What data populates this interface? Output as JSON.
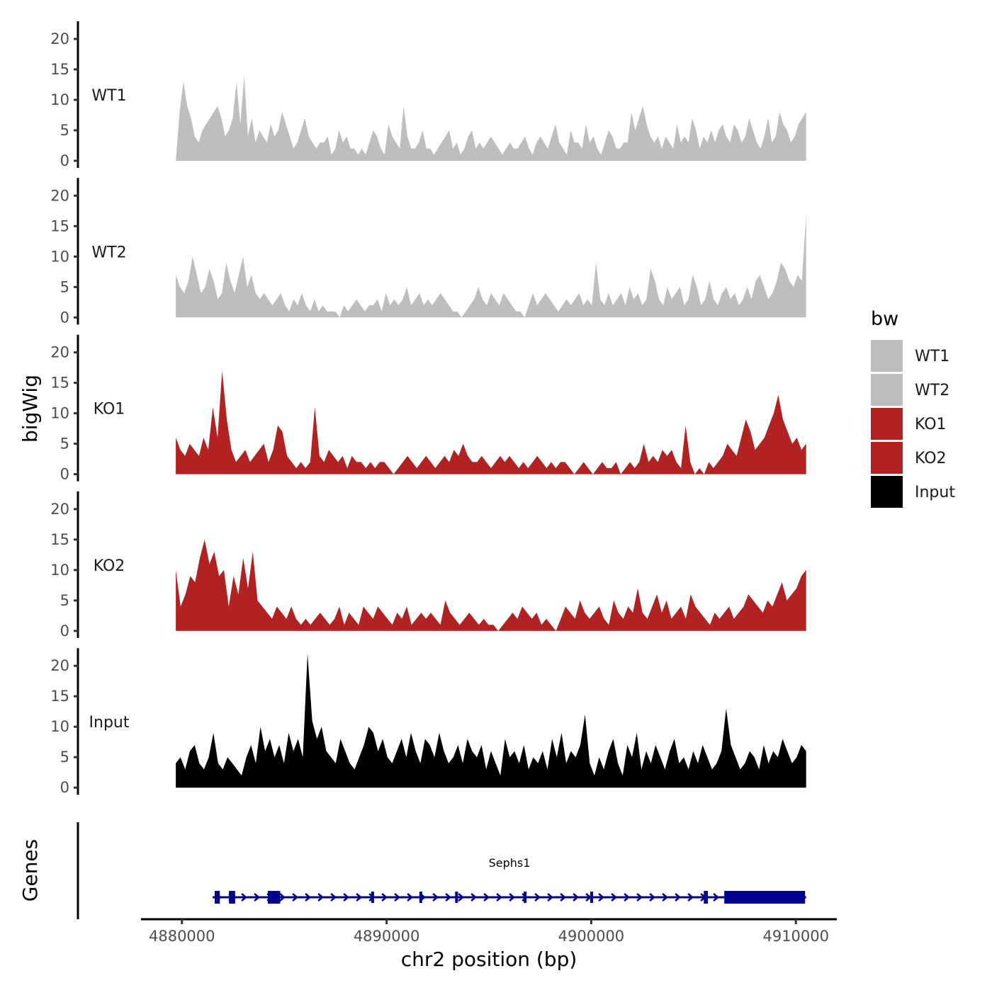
{
  "chart_data": {
    "type": "area",
    "ylabel": "bigWig",
    "xlabel": "chr2 position (bp)",
    "xlim": [
      4878000,
      4912000
    ],
    "data_range": [
      4879700,
      4910500
    ],
    "x_ticks": [
      "4880000",
      "4890000",
      "4900000",
      "4910000"
    ],
    "x_tick_values": [
      4880000,
      4890000,
      4900000,
      4910000
    ],
    "ylim": [
      0,
      23
    ],
    "y_ticks": [
      "0",
      "5",
      "10",
      "15",
      "20"
    ],
    "y_tick_values": [
      0,
      5,
      10,
      15,
      20
    ],
    "legend": {
      "title": "bw",
      "position": "right",
      "entries": [
        {
          "name": "WT1",
          "color": "#BEBEBE"
        },
        {
          "name": "WT2",
          "color": "#BEBEBE"
        },
        {
          "name": "KO1",
          "color": "#B22222"
        },
        {
          "name": "KO2",
          "color": "#B22222"
        },
        {
          "name": "Input",
          "color": "#000000"
        }
      ]
    },
    "tracks": [
      {
        "name": "WT1",
        "color": "#BEBEBE",
        "values": [
          0,
          8,
          13,
          9,
          7,
          4,
          3,
          5,
          6,
          7,
          8,
          9,
          7,
          4,
          5,
          7,
          13,
          6,
          14,
          4,
          7,
          3,
          5,
          4,
          3,
          6,
          4,
          5,
          8,
          6,
          4,
          2,
          3,
          5,
          7,
          4,
          3,
          2,
          3,
          3,
          4,
          1,
          2,
          5,
          3,
          4,
          2,
          2,
          1,
          2,
          1,
          3,
          5,
          4,
          2,
          1,
          6,
          4,
          3,
          2,
          9,
          4,
          2,
          2,
          3,
          5,
          2,
          2,
          1,
          2,
          3,
          4,
          5,
          2,
          3,
          1,
          2,
          4,
          5,
          2,
          3,
          2,
          3,
          4,
          3,
          2,
          1,
          2,
          3,
          2,
          2,
          3,
          4,
          2,
          1,
          3,
          4,
          3,
          2,
          4,
          6,
          3,
          2,
          1,
          5,
          3,
          3,
          2,
          6,
          3,
          4,
          2,
          1,
          3,
          5,
          4,
          2,
          2,
          3,
          3,
          8,
          5,
          7,
          9,
          6,
          4,
          3,
          4,
          2,
          4,
          3,
          2,
          6,
          3,
          4,
          3,
          7,
          5,
          2,
          4,
          3,
          5,
          3,
          5,
          6,
          4,
          3,
          6,
          5,
          3,
          4,
          7,
          5,
          3,
          2,
          4,
          7,
          3,
          4,
          8,
          6,
          5,
          3,
          4,
          6,
          7,
          8
        ]
      },
      {
        "name": "WT2",
        "color": "#BEBEBE",
        "values": [
          7,
          5,
          4,
          6,
          10,
          7,
          4,
          5,
          8,
          6,
          3,
          4,
          9,
          6,
          4,
          7,
          10,
          5,
          7,
          4,
          3,
          4,
          3,
          2,
          3,
          4,
          2,
          1,
          3,
          2,
          4,
          2,
          1,
          3,
          1,
          2,
          1,
          1,
          1,
          0,
          2,
          1,
          2,
          3,
          2,
          1,
          2,
          2,
          3,
          1,
          4,
          2,
          3,
          2,
          3,
          5,
          2,
          3,
          4,
          2,
          3,
          2,
          3,
          4,
          3,
          2,
          1,
          1,
          0,
          1,
          2,
          3,
          5,
          3,
          2,
          4,
          3,
          2,
          4,
          3,
          2,
          1,
          1,
          0,
          2,
          4,
          2,
          3,
          4,
          3,
          2,
          1,
          2,
          3,
          2,
          3,
          4,
          2,
          3,
          2,
          9,
          3,
          2,
          4,
          2,
          3,
          4,
          2,
          5,
          3,
          4,
          2,
          3,
          8,
          6,
          3,
          2,
          5,
          3,
          4,
          5,
          2,
          3,
          7,
          5,
          2,
          3,
          6,
          3,
          2,
          4,
          5,
          3,
          4,
          2,
          3,
          5,
          3,
          6,
          7,
          5,
          3,
          4,
          6,
          9,
          8,
          6,
          5,
          7,
          6,
          17
        ]
      },
      {
        "name": "KO1",
        "color": "#B22222",
        "values": [
          6,
          4,
          3,
          5,
          4,
          3,
          6,
          4,
          11,
          6,
          17,
          9,
          4,
          2,
          3,
          4,
          2,
          3,
          4,
          5,
          2,
          4,
          8,
          7,
          3,
          2,
          1,
          2,
          1,
          2,
          11,
          3,
          2,
          4,
          3,
          2,
          3,
          1,
          3,
          2,
          2,
          1,
          2,
          1,
          2,
          2,
          1,
          0,
          1,
          2,
          3,
          2,
          1,
          2,
          3,
          2,
          1,
          2,
          3,
          2,
          4,
          3,
          5,
          3,
          2,
          2,
          3,
          2,
          1,
          2,
          3,
          2,
          3,
          2,
          1,
          2,
          1,
          2,
          3,
          2,
          1,
          2,
          1,
          2,
          2,
          1,
          0,
          1,
          2,
          1,
          0,
          1,
          2,
          1,
          1,
          2,
          0,
          1,
          2,
          1,
          2,
          5,
          2,
          3,
          2,
          4,
          3,
          4,
          2,
          1,
          8,
          2,
          0,
          1,
          0,
          2,
          1,
          2,
          3,
          5,
          4,
          3,
          6,
          9,
          7,
          4,
          5,
          6,
          8,
          10,
          13,
          9,
          7,
          5,
          6,
          4,
          5
        ]
      },
      {
        "name": "KO2",
        "color": "#B22222",
        "values": [
          10,
          4,
          6,
          9,
          8,
          12,
          15,
          11,
          13,
          9,
          10,
          4,
          9,
          6,
          12,
          7,
          13,
          5,
          4,
          3,
          2,
          4,
          3,
          2,
          4,
          2,
          1,
          2,
          1,
          2,
          3,
          2,
          1,
          2,
          4,
          1,
          3,
          2,
          1,
          4,
          3,
          2,
          4,
          3,
          2,
          1,
          3,
          2,
          4,
          1,
          2,
          3,
          2,
          3,
          2,
          1,
          5,
          3,
          2,
          1,
          2,
          3,
          2,
          1,
          2,
          1,
          1,
          0,
          1,
          2,
          3,
          2,
          4,
          3,
          2,
          3,
          1,
          2,
          1,
          0,
          2,
          4,
          3,
          2,
          5,
          3,
          2,
          3,
          4,
          2,
          1,
          5,
          3,
          2,
          4,
          3,
          7,
          3,
          2,
          4,
          6,
          3,
          5,
          2,
          3,
          4,
          2,
          6,
          4,
          3,
          2,
          1,
          3,
          2,
          3,
          4,
          2,
          3,
          4,
          6,
          5,
          4,
          3,
          5,
          4,
          6,
          8,
          5,
          6,
          7,
          9,
          10
        ]
      },
      {
        "name": "Input",
        "color": "#000000",
        "values": [
          4,
          5,
          3,
          6,
          7,
          4,
          3,
          5,
          9,
          4,
          3,
          5,
          4,
          3,
          2,
          5,
          7,
          4,
          10,
          6,
          8,
          5,
          7,
          4,
          9,
          6,
          8,
          5,
          22,
          11,
          8,
          10,
          6,
          5,
          4,
          8,
          6,
          4,
          3,
          5,
          7,
          10,
          9,
          6,
          8,
          5,
          4,
          6,
          8,
          5,
          9,
          6,
          4,
          8,
          7,
          5,
          9,
          6,
          4,
          5,
          7,
          4,
          8,
          6,
          5,
          7,
          3,
          6,
          4,
          2,
          8,
          5,
          6,
          4,
          7,
          3,
          5,
          4,
          6,
          3,
          8,
          5,
          9,
          4,
          6,
          5,
          7,
          12,
          4,
          2,
          5,
          3,
          6,
          8,
          4,
          2,
          7,
          5,
          9,
          3,
          6,
          4,
          7,
          5,
          3,
          6,
          8,
          4,
          5,
          3,
          6,
          4,
          7,
          5,
          3,
          4,
          6,
          13,
          7,
          5,
          3,
          4,
          6,
          5,
          3,
          7,
          4,
          6,
          5,
          8,
          6,
          4,
          5,
          7,
          6
        ]
      }
    ],
    "gene": {
      "name": "Sephs1",
      "track_title": "Genes",
      "color": "#00008B",
      "start": 4881500,
      "end": 4910500,
      "exons": [
        [
          4881600,
          4881850
        ],
        [
          4882300,
          4882600
        ],
        [
          4884200,
          4884800
        ],
        [
          4889250,
          4889320
        ],
        [
          4891600,
          4891680
        ],
        [
          4893350,
          4893450
        ],
        [
          4896700,
          4896780
        ],
        [
          4899950,
          4900050
        ],
        [
          4905500,
          4905700
        ],
        [
          4906500,
          4910450
        ]
      ]
    }
  }
}
